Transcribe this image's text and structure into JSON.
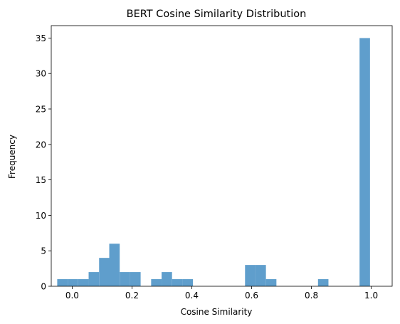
{
  "chart_data": {
    "type": "bar",
    "title": "BERT Cosine Similarity Distribution",
    "xlabel": "Cosine Similarity",
    "ylabel": "Frequency",
    "xlim": [
      -0.07,
      1.07
    ],
    "ylim": [
      0,
      36.75
    ],
    "bar_color": "#5f9ecc",
    "bin_width": 0.0349,
    "bins": [
      {
        "left": -0.05,
        "count": 1
      },
      {
        "left": -0.015,
        "count": 1
      },
      {
        "left": 0.02,
        "count": 1
      },
      {
        "left": 0.055,
        "count": 2
      },
      {
        "left": 0.09,
        "count": 4
      },
      {
        "left": 0.124,
        "count": 6
      },
      {
        "left": 0.159,
        "count": 2
      },
      {
        "left": 0.194,
        "count": 2
      },
      {
        "left": 0.229,
        "count": 0
      },
      {
        "left": 0.264,
        "count": 1
      },
      {
        "left": 0.299,
        "count": 2
      },
      {
        "left": 0.334,
        "count": 1
      },
      {
        "left": 0.369,
        "count": 1
      },
      {
        "left": 0.403,
        "count": 0
      },
      {
        "left": 0.438,
        "count": 0
      },
      {
        "left": 0.473,
        "count": 0
      },
      {
        "left": 0.508,
        "count": 0
      },
      {
        "left": 0.543,
        "count": 0
      },
      {
        "left": 0.578,
        "count": 3
      },
      {
        "left": 0.613,
        "count": 3
      },
      {
        "left": 0.648,
        "count": 1
      },
      {
        "left": 0.682,
        "count": 0
      },
      {
        "left": 0.717,
        "count": 0
      },
      {
        "left": 0.752,
        "count": 0
      },
      {
        "left": 0.787,
        "count": 0
      },
      {
        "left": 0.822,
        "count": 1
      },
      {
        "left": 0.857,
        "count": 0
      },
      {
        "left": 0.892,
        "count": 0
      },
      {
        "left": 0.927,
        "count": 0
      },
      {
        "left": 0.961,
        "count": 35
      }
    ],
    "x_ticks": [
      {
        "value": 0.0,
        "label": "0.0"
      },
      {
        "value": 0.2,
        "label": "0.2"
      },
      {
        "value": 0.4,
        "label": "0.4"
      },
      {
        "value": 0.6,
        "label": "0.6"
      },
      {
        "value": 0.8,
        "label": "0.8"
      },
      {
        "value": 1.0,
        "label": "1.0"
      }
    ],
    "y_ticks": [
      {
        "value": 0,
        "label": "0"
      },
      {
        "value": 5,
        "label": "5"
      },
      {
        "value": 10,
        "label": "10"
      },
      {
        "value": 15,
        "label": "15"
      },
      {
        "value": 20,
        "label": "20"
      },
      {
        "value": 25,
        "label": "25"
      },
      {
        "value": 30,
        "label": "30"
      },
      {
        "value": 35,
        "label": "35"
      }
    ]
  }
}
